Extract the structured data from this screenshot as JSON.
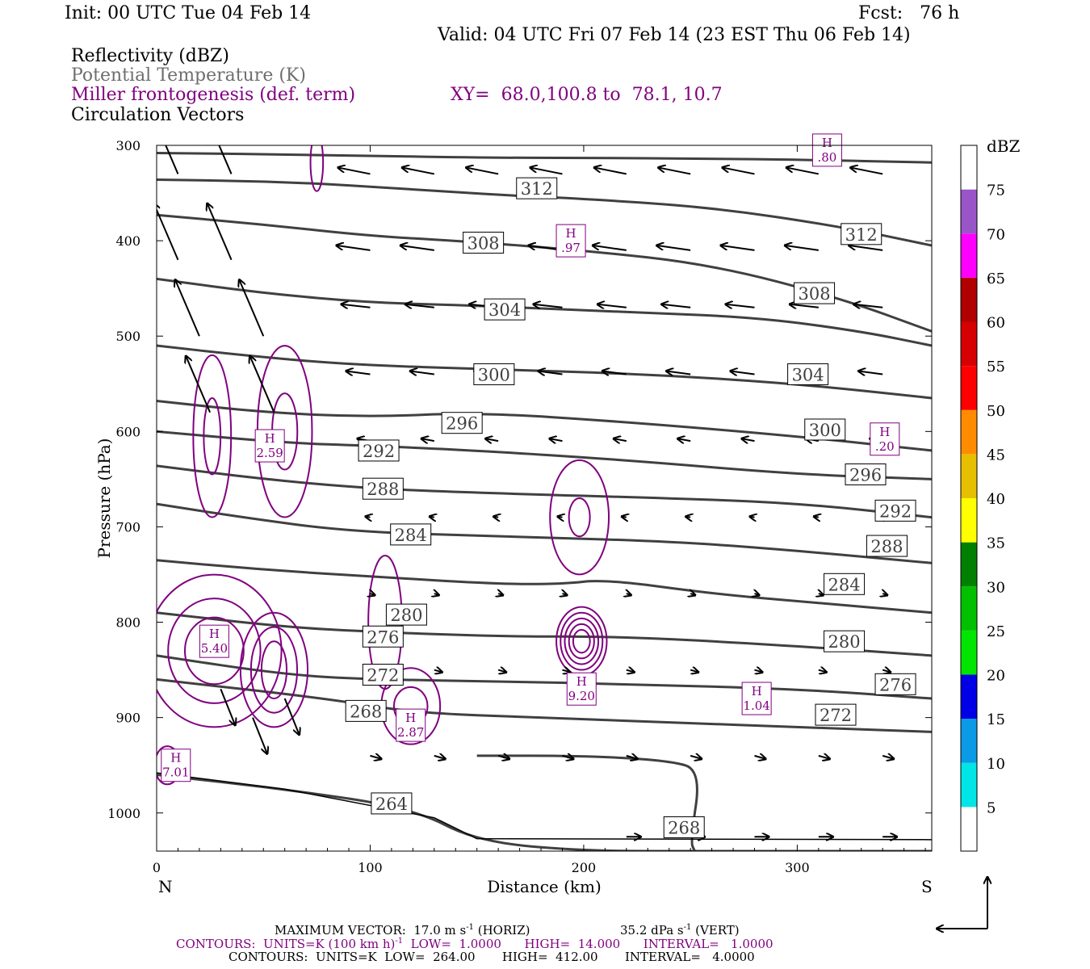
{
  "header": {
    "init": "Init: 00 UTC Tue 04 Feb 14",
    "fcst": "Fcst:   76 h",
    "valid": "Valid: 04 UTC Fri 07 Feb 14 (23 EST Thu 06 Feb 14)",
    "fields": [
      {
        "label": "Reflectivity (dBZ)",
        "color": "#000000"
      },
      {
        "label": "Potential Temperature (K)",
        "color": "#6e6e6e"
      },
      {
        "label": "Miller frontogenesis (def. term)",
        "color": "#800080"
      },
      {
        "label": "Circulation Vectors",
        "color": "#000000"
      }
    ],
    "xy": "XY=  68.0,100.8 to  78.1, 10.7"
  },
  "footer": {
    "max_vector": "MAXIMUM VECTOR:  17.0 m s",
    "max_vector_sup": "-1",
    "max_vector_h": " (HORIZ)",
    "vert": "35.2 dPa s",
    "vert_sup": "-1",
    "vert_v": " (VERT)",
    "contours1_a": "CONTOURS:  UNITS=K (100 km h)",
    "contours1_sup": "-1",
    "contours1_b": "  LOW=  1.0000      HIGH=  14.000      INTERVAL=   1.0000",
    "contours2": "CONTOURS:  UNITS=K  LOW=  264.00       HIGH=  412.00       INTERVAL=   4.0000"
  },
  "chart_data": {
    "type": "cross-section",
    "xlabel": "Distance (km)",
    "ylabel": "Pressure (hPa)",
    "xlim": [
      0,
      363
    ],
    "ylim": [
      1040,
      300
    ],
    "x_ticks": [
      0,
      100,
      200,
      300
    ],
    "y_ticks": [
      300,
      400,
      500,
      600,
      700,
      800,
      900,
      1000
    ],
    "x_end_labels": {
      "left": "N",
      "right": "S"
    },
    "colorbar": {
      "unit": "dBZ",
      "levels": [
        5,
        10,
        15,
        20,
        25,
        30,
        35,
        40,
        45,
        50,
        55,
        60,
        65,
        70,
        75
      ],
      "colors": [
        "#ffffff",
        "#00e5e5",
        "#0a9ae6",
        "#0000e6",
        "#00e600",
        "#00c000",
        "#008000",
        "#ffff00",
        "#e5bf00",
        "#ff8c00",
        "#ff0000",
        "#d70000",
        "#b00000",
        "#ff00ff",
        "#9955c8",
        "#ffffff"
      ]
    },
    "theta_contours": [
      {
        "label": "312",
        "points": [
          [
            0,
            308
          ],
          [
            80,
            310
          ],
          [
            150,
            313
          ],
          [
            200,
            313
          ],
          [
            260,
            314
          ],
          [
            300,
            315
          ],
          [
            363,
            318
          ]
        ]
      },
      {
        "label": "312",
        "points": [
          [
            0,
            336
          ],
          [
            60,
            338
          ],
          [
            120,
            346
          ],
          [
            160,
            352
          ],
          [
            200,
            356
          ],
          [
            260,
            365
          ],
          [
            320,
            385
          ],
          [
            363,
            405
          ]
        ]
      },
      {
        "label": "308",
        "points": [
          [
            0,
            373
          ],
          [
            50,
            383
          ],
          [
            100,
            395
          ],
          [
            140,
            400
          ],
          [
            200,
            410
          ],
          [
            260,
            425
          ],
          [
            320,
            460
          ],
          [
            363,
            495
          ]
        ]
      },
      {
        "label": "304",
        "points": [
          [
            0,
            440
          ],
          [
            50,
            455
          ],
          [
            100,
            465
          ],
          [
            150,
            468
          ],
          [
            220,
            475
          ],
          [
            280,
            480
          ],
          [
            330,
            495
          ],
          [
            363,
            510
          ]
        ]
      },
      {
        "label": "300",
        "points": [
          [
            0,
            510
          ],
          [
            40,
            520
          ],
          [
            90,
            530
          ],
          [
            160,
            535
          ],
          [
            230,
            540
          ],
          [
            300,
            550
          ],
          [
            363,
            565
          ]
        ]
      },
      {
        "label": "296",
        "points": [
          [
            0,
            568
          ],
          [
            50,
            580
          ],
          [
            100,
            585
          ],
          [
            150,
            580
          ],
          [
            220,
            590
          ],
          [
            300,
            605
          ],
          [
            363,
            620
          ]
        ]
      },
      {
        "label": "292",
        "points": [
          [
            0,
            600
          ],
          [
            60,
            612
          ],
          [
            100,
            615
          ],
          [
            150,
            620
          ],
          [
            220,
            630
          ],
          [
            300,
            645
          ],
          [
            363,
            650
          ]
        ]
      },
      {
        "label": "288",
        "points": [
          [
            0,
            636
          ],
          [
            50,
            650
          ],
          [
            100,
            660
          ],
          [
            160,
            665
          ],
          [
            240,
            670
          ],
          [
            300,
            675
          ],
          [
            363,
            690
          ]
        ]
      },
      {
        "label": "284",
        "points": [
          [
            0,
            676
          ],
          [
            40,
            690
          ],
          [
            90,
            705
          ],
          [
            160,
            710
          ],
          [
            240,
            715
          ],
          [
            300,
            725
          ],
          [
            363,
            738
          ]
        ]
      },
      {
        "label": "280",
        "points": [
          [
            0,
            735
          ],
          [
            50,
            745
          ],
          [
            100,
            752
          ],
          [
            160,
            760
          ],
          [
            190,
            760
          ],
          [
            210,
            755
          ],
          [
            260,
            770
          ],
          [
            300,
            778
          ],
          [
            363,
            790
          ]
        ]
      },
      {
        "label": "276",
        "points": [
          [
            0,
            790
          ],
          [
            60,
            805
          ],
          [
            100,
            810
          ],
          [
            160,
            815
          ],
          [
            220,
            815
          ],
          [
            300,
            825
          ],
          [
            363,
            835
          ]
        ]
      },
      {
        "label": "272",
        "points": [
          [
            0,
            835
          ],
          [
            60,
            855
          ],
          [
            100,
            860
          ],
          [
            160,
            862
          ],
          [
            220,
            865
          ],
          [
            300,
            870
          ],
          [
            363,
            880
          ]
        ]
      },
      {
        "label": "268",
        "points": [
          [
            0,
            860
          ],
          [
            80,
            880
          ],
          [
            120,
            895
          ],
          [
            180,
            900
          ],
          [
            240,
            905
          ],
          [
            300,
            910
          ],
          [
            363,
            915
          ]
        ]
      },
      {
        "label": "264",
        "points": [
          [
            0,
            960
          ],
          [
            60,
            975
          ],
          [
            120,
            995
          ],
          [
            150,
            1030
          ],
          [
            200,
            1040
          ],
          [
            260,
            1040
          ],
          [
            363,
            1040
          ]
        ]
      },
      {
        "label": "268",
        "points": [
          [
            150,
            940
          ],
          [
            200,
            940
          ],
          [
            240,
            945
          ],
          [
            255,
            955
          ],
          [
            250,
            1030
          ],
          [
            252,
            1040
          ]
        ]
      }
    ],
    "contour_labels": [
      {
        "text": "312",
        "x": 178,
        "p": 345
      },
      {
        "text": "312",
        "x": 330,
        "p": 393
      },
      {
        "text": "308",
        "x": 153,
        "p": 402
      },
      {
        "text": "308",
        "x": 308,
        "p": 455
      },
      {
        "text": "304",
        "x": 163,
        "p": 472
      },
      {
        "text": "304",
        "x": 305,
        "p": 540
      },
      {
        "text": "300",
        "x": 158,
        "p": 540
      },
      {
        "text": "300",
        "x": 313,
        "p": 598
      },
      {
        "text": "296",
        "x": 143,
        "p": 591
      },
      {
        "text": "296",
        "x": 332,
        "p": 645
      },
      {
        "text": "292",
        "x": 104,
        "p": 620
      },
      {
        "text": "292",
        "x": 346,
        "p": 683
      },
      {
        "text": "288",
        "x": 106,
        "p": 660
      },
      {
        "text": "288",
        "x": 342,
        "p": 720
      },
      {
        "text": "284",
        "x": 119,
        "p": 708
      },
      {
        "text": "284",
        "x": 322,
        "p": 760
      },
      {
        "text": "280",
        "x": 117,
        "p": 792
      },
      {
        "text": "280",
        "x": 322,
        "p": 820
      },
      {
        "text": "276",
        "x": 106,
        "p": 815
      },
      {
        "text": "276",
        "x": 346,
        "p": 865
      },
      {
        "text": "272",
        "x": 106,
        "p": 855
      },
      {
        "text": "272",
        "x": 318,
        "p": 897
      },
      {
        "text": "268",
        "x": 98,
        "p": 893
      },
      {
        "text": "268",
        "x": 247,
        "p": 1015
      },
      {
        "text": "264",
        "x": 110,
        "p": 990
      }
    ],
    "frontogenesis_maxima": [
      {
        "line1": "H",
        "line2": "7.01",
        "x": 9,
        "p": 950
      },
      {
        "line1": "H",
        "line2": "5.40",
        "x": 27,
        "p": 820
      },
      {
        "line1": "H",
        "line2": "2.59",
        "x": 53,
        "p": 615
      },
      {
        "line1": "H",
        "line2": "2.87",
        "x": 119,
        "p": 908
      },
      {
        "line1": "H",
        "line2": "9.20",
        "x": 199,
        "p": 870
      },
      {
        "line1": "H",
        "line2": "1.04",
        "x": 281,
        "p": 880
      },
      {
        "line1": "H",
        "line2": ".97",
        "x": 194,
        "p": 400
      },
      {
        "line1": "H",
        "line2": ".20",
        "x": 341,
        "p": 608
      },
      {
        "line1": "H",
        "line2": ".80",
        "x": 314,
        "p": 305
      }
    ]
  }
}
